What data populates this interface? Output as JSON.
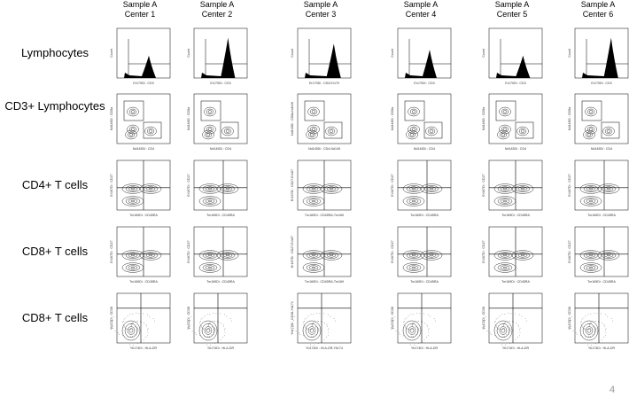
{
  "columns": [
    {
      "line1": "Sample A",
      "line2": "Center 1"
    },
    {
      "line1": "Sample A",
      "line2": "Center 2"
    },
    {
      "line1": "Sample A",
      "line2": "Center 3"
    },
    {
      "line1": "Sample A",
      "line2": "Center 4"
    },
    {
      "line1": "Sample A",
      "line2": "Center 5"
    },
    {
      "line1": "Sample A",
      "line2": "Center 6"
    }
  ],
  "rows": [
    {
      "label": "Lymphocytes",
      "kind": "histogram",
      "x_labels": [
        "Er170Di : CD3",
        "Er170Di : CD3",
        "Er170Di : CD3-Er170",
        "Er170Di : CD3",
        "Er170Di : CD3",
        "Er170Di : CD3"
      ],
      "y_labels": [
        "Count",
        "Count",
        "Count",
        "Count",
        "Count",
        "Count"
      ]
    },
    {
      "label": "CD3+ Lymphocytes",
      "kind": "gates",
      "x_labels": [
        "Nd145Di : CD4",
        "Nd145Di : CD4",
        "Nd145Di : CD4-Nd145",
        "Nd145Di : CD4",
        "Nd145Di : CD4",
        "Nd145Di : CD4"
      ],
      "y_labels": [
        "Nd146Di : CD8a",
        "Nd146Di : CD8a",
        "Nd146Di : CD8a-Nd146",
        "Nd146Di : CD8a",
        "Nd146Di : CD8a",
        "Nd146Di : CD8a"
      ]
    },
    {
      "label": "CD4+ T cells",
      "kind": "quadrant",
      "x_labels": [
        "Tm169Di : CD45RA",
        "Tm169Di : CD45RA",
        "Tm169Di : CD45RA-Tm169",
        "Tm169Di : CD45RA",
        "Tm169Di : CD45RA",
        "Tm169Di : CD45RA"
      ],
      "y_labels": [
        "Er167Di : CD27",
        "Er167Di : CD27",
        "Er167Di : CD27-Er167",
        "Er167Di : CD27",
        "Er167Di : CD27",
        "Er167Di : CD27"
      ]
    },
    {
      "label": "CD8+ T cells",
      "kind": "quadrant",
      "x_labels": [
        "Tm169Di : CD45RA",
        "Tm169Di : CD45RA",
        "Tm169Di : CD45RA-Tm169",
        "Tm169Di : CD45RA",
        "Tm169Di : CD45RA",
        "Tm169Di : CD45RA"
      ],
      "y_labels": [
        "Er167Di : CD27",
        "Er167Di : CD27",
        "Er167Di : CD27-Er167",
        "Er167Di : CD27",
        "Er167Di : CD27",
        "Er167Di : CD27"
      ]
    },
    {
      "label": "CD8+ T cells",
      "kind": "scatter",
      "x_labels": [
        "Yb174Di : HLA-DR",
        "Yb174Di : HLA-DR",
        "Yb174Di : HLA-DR-Yb174",
        "Yb174Di : HLA-DR",
        "Yb174Di : HLA-DR",
        "Yb174Di : HLA-DR"
      ],
      "y_labels": [
        "Yb172Di : CD38",
        "Yb172Di : CD38",
        "Yb172Di : CD38-Yb172",
        "Yb172Di : CD38",
        "Yb172Di : CD38",
        "Yb172Di : CD38"
      ]
    }
  ],
  "page_number": "4"
}
